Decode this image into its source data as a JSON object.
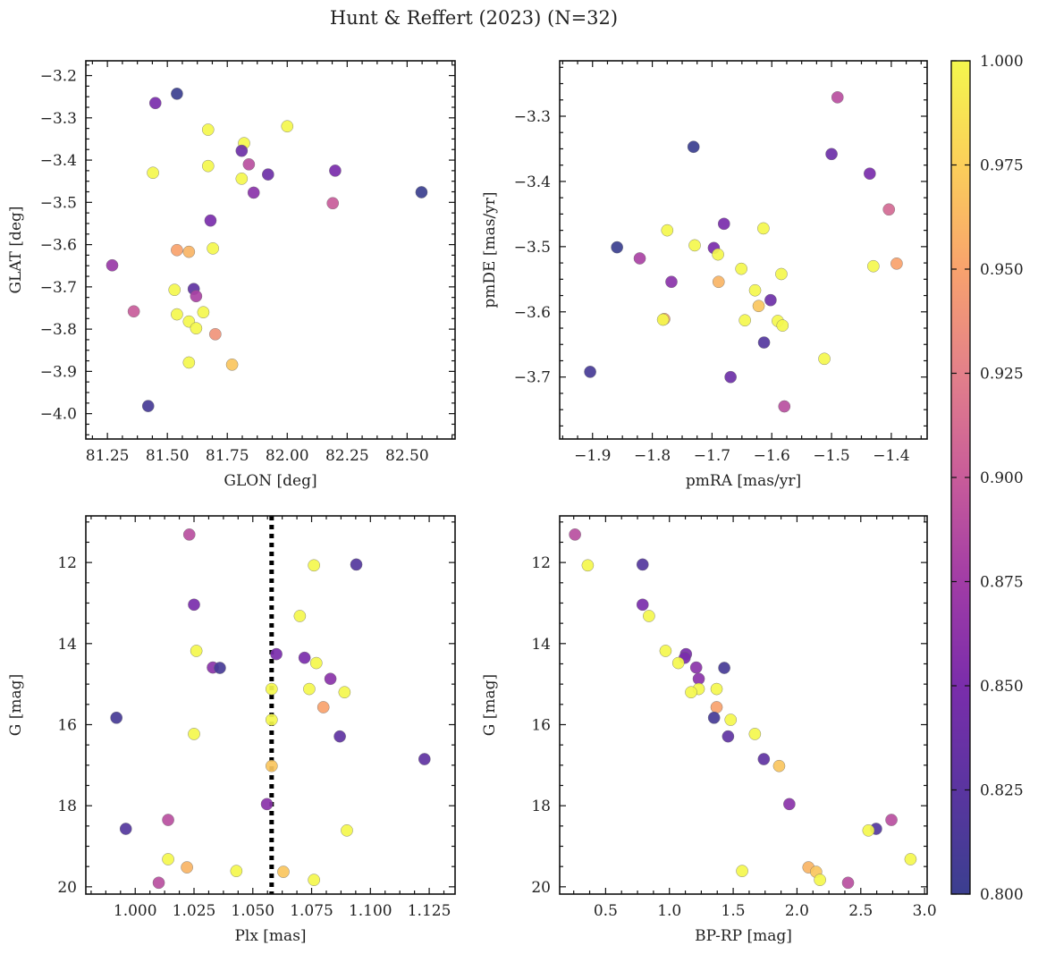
{
  "figure": {
    "title": "Hunt & Reffert (2023) (N=32)"
  },
  "colorbar": {
    "min": 0.8,
    "max": 1.0,
    "ticks": [
      "0.800",
      "0.825",
      "0.850",
      "0.875",
      "0.900",
      "0.925",
      "0.950",
      "0.975",
      "1.000"
    ],
    "tick_values": [
      0.8,
      0.825,
      0.85,
      0.875,
      0.9,
      0.925,
      0.95,
      0.975,
      1.0
    ],
    "colormap": "plasma"
  },
  "chart_data": [
    {
      "type": "scatter",
      "xlabel": "GLON [deg]",
      "ylabel": "GLAT [deg]",
      "xlim": [
        81.16,
        82.7
      ],
      "ylim": [
        -4.06,
        -3.165
      ],
      "xticks": [
        81.25,
        81.5,
        81.75,
        82.0,
        82.25,
        82.5
      ],
      "xtick_labels": [
        "81.25",
        "81.50",
        "81.75",
        "82.00",
        "82.25",
        "82.50"
      ],
      "yticks": [
        -4.0,
        -3.9,
        -3.8,
        -3.7,
        -3.6,
        -3.5,
        -3.4,
        -3.3,
        -3.2
      ],
      "ytick_labels": [
        "−4.0",
        "−3.9",
        "−3.8",
        "−3.7",
        "−3.6",
        "−3.5",
        "−3.4",
        "−3.3",
        "−3.2"
      ],
      "points": [
        {
          "x": 81.54,
          "y": -3.243,
          "c": 0.8
        },
        {
          "x": 81.45,
          "y": -3.265,
          "c": 0.85
        },
        {
          "x": 82.0,
          "y": -3.32,
          "c": 1.0
        },
        {
          "x": 81.67,
          "y": -3.328,
          "c": 1.0
        },
        {
          "x": 81.82,
          "y": -3.36,
          "c": 1.0
        },
        {
          "x": 81.81,
          "y": -3.378,
          "c": 0.84
        },
        {
          "x": 81.84,
          "y": -3.41,
          "c": 0.89
        },
        {
          "x": 81.67,
          "y": -3.414,
          "c": 1.0
        },
        {
          "x": 82.2,
          "y": -3.425,
          "c": 0.85
        },
        {
          "x": 81.44,
          "y": -3.43,
          "c": 1.0
        },
        {
          "x": 81.92,
          "y": -3.434,
          "c": 0.84
        },
        {
          "x": 81.81,
          "y": -3.444,
          "c": 1.0
        },
        {
          "x": 81.86,
          "y": -3.477,
          "c": 0.86
        },
        {
          "x": 82.56,
          "y": -3.476,
          "c": 0.8
        },
        {
          "x": 82.19,
          "y": -3.502,
          "c": 0.9
        },
        {
          "x": 81.68,
          "y": -3.543,
          "c": 0.85
        },
        {
          "x": 81.54,
          "y": -3.613,
          "c": 0.95
        },
        {
          "x": 81.69,
          "y": -3.609,
          "c": 1.0
        },
        {
          "x": 81.59,
          "y": -3.617,
          "c": 0.96
        },
        {
          "x": 81.27,
          "y": -3.649,
          "c": 0.87
        },
        {
          "x": 81.61,
          "y": -3.705,
          "c": 0.83
        },
        {
          "x": 81.53,
          "y": -3.707,
          "c": 1.0
        },
        {
          "x": 81.62,
          "y": -3.722,
          "c": 0.88
        },
        {
          "x": 81.36,
          "y": -3.758,
          "c": 0.9
        },
        {
          "x": 81.65,
          "y": -3.76,
          "c": 1.0
        },
        {
          "x": 81.54,
          "y": -3.765,
          "c": 1.0
        },
        {
          "x": 81.59,
          "y": -3.782,
          "c": 1.0
        },
        {
          "x": 81.62,
          "y": -3.798,
          "c": 1.0
        },
        {
          "x": 81.7,
          "y": -3.812,
          "c": 0.94
        },
        {
          "x": 81.59,
          "y": -3.879,
          "c": 1.0
        },
        {
          "x": 81.77,
          "y": -3.884,
          "c": 0.97
        },
        {
          "x": 81.42,
          "y": -3.982,
          "c": 0.81
        }
      ]
    },
    {
      "type": "scatter",
      "xlabel": "pmRA [mas/yr]",
      "ylabel": "pmDE [mas/yr]",
      "xlim": [
        -1.955,
        -1.34
      ],
      "ylim": [
        -3.795,
        -3.215
      ],
      "xticks": [
        -1.9,
        -1.8,
        -1.7,
        -1.6,
        -1.5,
        -1.4
      ],
      "xtick_labels": [
        "−1.9",
        "−1.8",
        "−1.7",
        "−1.6",
        "−1.5",
        "−1.4"
      ],
      "yticks": [
        -3.7,
        -3.6,
        -3.5,
        -3.4,
        -3.3
      ],
      "ytick_labels": [
        "−3.7",
        "−3.6",
        "−3.5",
        "−3.4",
        "−3.3"
      ],
      "points": [
        {
          "x": -1.49,
          "y": -3.271,
          "c": 0.89
        },
        {
          "x": -1.731,
          "y": -3.347,
          "c": 0.8
        },
        {
          "x": -1.5,
          "y": -3.358,
          "c": 0.84
        },
        {
          "x": -1.436,
          "y": -3.388,
          "c": 0.85
        },
        {
          "x": -1.404,
          "y": -3.443,
          "c": 0.91
        },
        {
          "x": -1.68,
          "y": -3.465,
          "c": 0.85
        },
        {
          "x": -1.614,
          "y": -3.472,
          "c": 1.0
        },
        {
          "x": -1.775,
          "y": -3.475,
          "c": 1.0
        },
        {
          "x": -1.729,
          "y": -3.498,
          "c": 1.0
        },
        {
          "x": -1.859,
          "y": -3.501,
          "c": 0.8
        },
        {
          "x": -1.697,
          "y": -3.502,
          "c": 0.85
        },
        {
          "x": -1.69,
          "y": -3.512,
          "c": 1.0
        },
        {
          "x": -1.821,
          "y": -3.518,
          "c": 0.88
        },
        {
          "x": -1.391,
          "y": -3.526,
          "c": 0.95
        },
        {
          "x": -1.43,
          "y": -3.53,
          "c": 1.0
        },
        {
          "x": -1.651,
          "y": -3.534,
          "c": 1.0
        },
        {
          "x": -1.584,
          "y": -3.542,
          "c": 1.0
        },
        {
          "x": -1.768,
          "y": -3.554,
          "c": 0.86
        },
        {
          "x": -1.689,
          "y": -3.554,
          "c": 0.96
        },
        {
          "x": -1.628,
          "y": -3.567,
          "c": 1.0
        },
        {
          "x": -1.602,
          "y": -3.582,
          "c": 0.84
        },
        {
          "x": -1.622,
          "y": -3.591,
          "c": 0.97
        },
        {
          "x": -1.78,
          "y": -3.611,
          "c": 0.95
        },
        {
          "x": -1.782,
          "y": -3.612,
          "c": 1.0
        },
        {
          "x": -1.645,
          "y": -3.613,
          "c": 1.0
        },
        {
          "x": -1.59,
          "y": -3.614,
          "c": 1.0
        },
        {
          "x": -1.582,
          "y": -3.621,
          "c": 1.0
        },
        {
          "x": -1.613,
          "y": -3.647,
          "c": 0.82
        },
        {
          "x": -1.512,
          "y": -3.672,
          "c": 1.0
        },
        {
          "x": -1.904,
          "y": -3.692,
          "c": 0.81
        },
        {
          "x": -1.669,
          "y": -3.7,
          "c": 0.84
        },
        {
          "x": -1.579,
          "y": -3.745,
          "c": 0.89
        }
      ]
    },
    {
      "type": "scatter",
      "xlabel": "Plx [mas]",
      "ylabel": "G [mag]",
      "xlim": [
        0.979,
        1.136
      ],
      "ylim": [
        20.18,
        10.85
      ],
      "xticks": [
        1.0,
        1.025,
        1.05,
        1.075,
        1.1,
        1.125
      ],
      "xtick_labels": [
        "1.000",
        "1.025",
        "1.050",
        "1.075",
        "1.100",
        "1.125"
      ],
      "yticks": [
        12,
        14,
        16,
        18,
        20
      ],
      "ytick_labels": [
        "12",
        "14",
        "16",
        "18",
        "20"
      ],
      "vline": 1.058,
      "points": [
        {
          "x": 1.023,
          "y": 11.31,
          "c": 0.89
        },
        {
          "x": 1.094,
          "y": 12.05,
          "c": 0.82
        },
        {
          "x": 1.076,
          "y": 12.07,
          "c": 1.0
        },
        {
          "x": 1.025,
          "y": 13.04,
          "c": 0.85
        },
        {
          "x": 1.07,
          "y": 13.32,
          "c": 1.0
        },
        {
          "x": 1.026,
          "y": 14.18,
          "c": 1.0
        },
        {
          "x": 1.06,
          "y": 14.26,
          "c": 0.85
        },
        {
          "x": 1.072,
          "y": 14.35,
          "c": 0.85
        },
        {
          "x": 1.077,
          "y": 14.48,
          "c": 1.0
        },
        {
          "x": 1.033,
          "y": 14.59,
          "c": 0.86
        },
        {
          "x": 1.036,
          "y": 14.6,
          "c": 0.81
        },
        {
          "x": 1.083,
          "y": 14.87,
          "c": 0.86
        },
        {
          "x": 1.058,
          "y": 15.12,
          "c": 1.0
        },
        {
          "x": 1.074,
          "y": 15.12,
          "c": 1.0
        },
        {
          "x": 1.089,
          "y": 15.2,
          "c": 1.0
        },
        {
          "x": 1.08,
          "y": 15.57,
          "c": 0.95
        },
        {
          "x": 0.992,
          "y": 15.83,
          "c": 0.81
        },
        {
          "x": 1.058,
          "y": 15.88,
          "c": 1.0
        },
        {
          "x": 1.025,
          "y": 16.23,
          "c": 1.0
        },
        {
          "x": 1.087,
          "y": 16.29,
          "c": 0.83
        },
        {
          "x": 1.123,
          "y": 16.85,
          "c": 0.83
        },
        {
          "x": 1.058,
          "y": 17.02,
          "c": 0.97
        },
        {
          "x": 1.056,
          "y": 17.96,
          "c": 0.86
        },
        {
          "x": 1.014,
          "y": 18.35,
          "c": 0.89
        },
        {
          "x": 0.996,
          "y": 18.57,
          "c": 0.82
        },
        {
          "x": 1.09,
          "y": 18.61,
          "c": 1.0
        },
        {
          "x": 1.014,
          "y": 19.32,
          "c": 1.0
        },
        {
          "x": 1.022,
          "y": 19.52,
          "c": 0.96
        },
        {
          "x": 1.043,
          "y": 19.61,
          "c": 1.0
        },
        {
          "x": 1.063,
          "y": 19.63,
          "c": 0.97
        },
        {
          "x": 1.076,
          "y": 19.83,
          "c": 1.0
        },
        {
          "x": 1.01,
          "y": 19.9,
          "c": 0.89
        }
      ]
    },
    {
      "type": "scatter",
      "xlabel": "BP-RP [mag]",
      "ylabel": "G [mag]",
      "xlim": [
        0.14,
        3.02
      ],
      "ylim": [
        20.18,
        10.85
      ],
      "xticks": [
        0.5,
        1.0,
        1.5,
        2.0,
        2.5,
        3.0
      ],
      "xtick_labels": [
        "0.5",
        "1.0",
        "1.5",
        "2.0",
        "2.5",
        "3.0"
      ],
      "yticks": [
        12,
        14,
        16,
        18,
        20
      ],
      "ytick_labels": [
        "12",
        "14",
        "16",
        "18",
        "20"
      ],
      "points": [
        {
          "x": 0.26,
          "y": 11.31,
          "c": 0.89
        },
        {
          "x": 0.36,
          "y": 12.07,
          "c": 1.0
        },
        {
          "x": 0.79,
          "y": 12.05,
          "c": 0.82
        },
        {
          "x": 0.79,
          "y": 13.04,
          "c": 0.85
        },
        {
          "x": 0.84,
          "y": 13.32,
          "c": 1.0
        },
        {
          "x": 0.97,
          "y": 14.18,
          "c": 1.0
        },
        {
          "x": 1.13,
          "y": 14.26,
          "c": 0.85
        },
        {
          "x": 1.12,
          "y": 14.35,
          "c": 0.85
        },
        {
          "x": 1.07,
          "y": 14.48,
          "c": 1.0
        },
        {
          "x": 1.21,
          "y": 14.59,
          "c": 0.86
        },
        {
          "x": 1.43,
          "y": 14.6,
          "c": 0.81
        },
        {
          "x": 1.23,
          "y": 14.87,
          "c": 0.86
        },
        {
          "x": 1.23,
          "y": 15.12,
          "c": 1.0
        },
        {
          "x": 1.37,
          "y": 15.12,
          "c": 1.0
        },
        {
          "x": 1.17,
          "y": 15.2,
          "c": 1.0
        },
        {
          "x": 1.37,
          "y": 15.57,
          "c": 0.95
        },
        {
          "x": 1.35,
          "y": 15.83,
          "c": 0.81
        },
        {
          "x": 1.48,
          "y": 15.88,
          "c": 1.0
        },
        {
          "x": 1.67,
          "y": 16.23,
          "c": 1.0
        },
        {
          "x": 1.46,
          "y": 16.29,
          "c": 0.83
        },
        {
          "x": 1.74,
          "y": 16.85,
          "c": 0.83
        },
        {
          "x": 1.86,
          "y": 17.02,
          "c": 0.97
        },
        {
          "x": 1.94,
          "y": 17.96,
          "c": 0.86
        },
        {
          "x": 2.74,
          "y": 18.35,
          "c": 0.89
        },
        {
          "x": 2.62,
          "y": 18.57,
          "c": 0.82
        },
        {
          "x": 2.56,
          "y": 18.61,
          "c": 1.0
        },
        {
          "x": 2.89,
          "y": 19.32,
          "c": 1.0
        },
        {
          "x": 2.09,
          "y": 19.52,
          "c": 0.96
        },
        {
          "x": 1.57,
          "y": 19.61,
          "c": 1.0
        },
        {
          "x": 2.15,
          "y": 19.63,
          "c": 0.97
        },
        {
          "x": 2.18,
          "y": 19.83,
          "c": 1.0
        },
        {
          "x": 2.4,
          "y": 19.9,
          "c": 0.89
        }
      ]
    }
  ]
}
